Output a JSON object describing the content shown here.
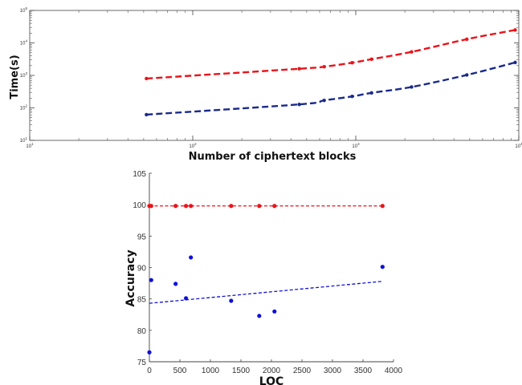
{
  "chart_data": [
    {
      "type": "line",
      "xscale": "log",
      "yscale": "log",
      "xlabel": "Number of ciphertext blocks",
      "ylabel": "Time(s)",
      "xlim": [
        10,
        10000
      ],
      "ylim": [
        10,
        100000
      ],
      "x_ticks": [
        {
          "value": 10,
          "label": "10",
          "exp": "1"
        },
        {
          "value": 100,
          "label": "10",
          "exp": "2"
        },
        {
          "value": 1000,
          "label": "10",
          "exp": "3"
        },
        {
          "value": 10000,
          "label": "10",
          "exp": "4"
        }
      ],
      "y_ticks": [
        {
          "value": 10,
          "label": "10",
          "exp": "1"
        },
        {
          "value": 100,
          "label": "10",
          "exp": "2"
        },
        {
          "value": 1000,
          "label": "10",
          "exp": "3"
        },
        {
          "value": 10000,
          "label": "10",
          "exp": "4"
        },
        {
          "value": 100000,
          "label": "10",
          "exp": "5"
        }
      ],
      "series": [
        {
          "color": "#e8141b",
          "line_style": "dashed",
          "points": [
            [
              52,
              800
            ],
            [
              450,
              1600
            ],
            [
              640,
              1850
            ],
            [
              950,
              2450
            ],
            [
              1250,
              3150
            ],
            [
              2200,
              5300
            ],
            [
              4800,
              13000
            ],
            [
              9500,
              25000
            ]
          ]
        },
        {
          "color": "#1a2a8c",
          "line_style": "dashed",
          "points": [
            [
              52,
              62
            ],
            [
              450,
              128
            ],
            [
              640,
              170
            ],
            [
              950,
              225
            ],
            [
              1250,
              290
            ],
            [
              2200,
              440
            ],
            [
              4800,
              1030
            ],
            [
              9500,
              2500
            ]
          ]
        }
      ]
    },
    {
      "type": "scatter",
      "xlabel": "LOC",
      "ylabel": "Accuracy",
      "xlim": [
        0,
        4000
      ],
      "ylim": [
        75,
        105
      ],
      "x_ticks": [
        0,
        500,
        1000,
        1500,
        2000,
        2500,
        3000,
        3500,
        4000
      ],
      "y_ticks": [
        75,
        80,
        85,
        90,
        95,
        100,
        105
      ],
      "series": [
        {
          "color": "#e8141b",
          "points": [
            [
              0,
              99.8
            ],
            [
              30,
              99.8
            ],
            [
              430,
              99.8
            ],
            [
              600,
              99.8
            ],
            [
              680,
              99.8
            ],
            [
              1340,
              99.8
            ],
            [
              1800,
              99.8
            ],
            [
              2050,
              99.8
            ],
            [
              3820,
              99.8
            ]
          ],
          "trend": [
            [
              0,
              99.8
            ],
            [
              3820,
              99.8
            ]
          ]
        },
        {
          "color": "#1010d8",
          "points": [
            [
              0,
              76.5
            ],
            [
              30,
              88
            ],
            [
              430,
              87.4
            ],
            [
              600,
              85.1
            ],
            [
              680,
              91.6
            ],
            [
              1340,
              84.7
            ],
            [
              1800,
              82.3
            ],
            [
              2050,
              83
            ],
            [
              3820,
              90.1
            ]
          ],
          "trend": [
            [
              0,
              84.3
            ],
            [
              3820,
              87.8
            ]
          ]
        }
      ]
    }
  ]
}
